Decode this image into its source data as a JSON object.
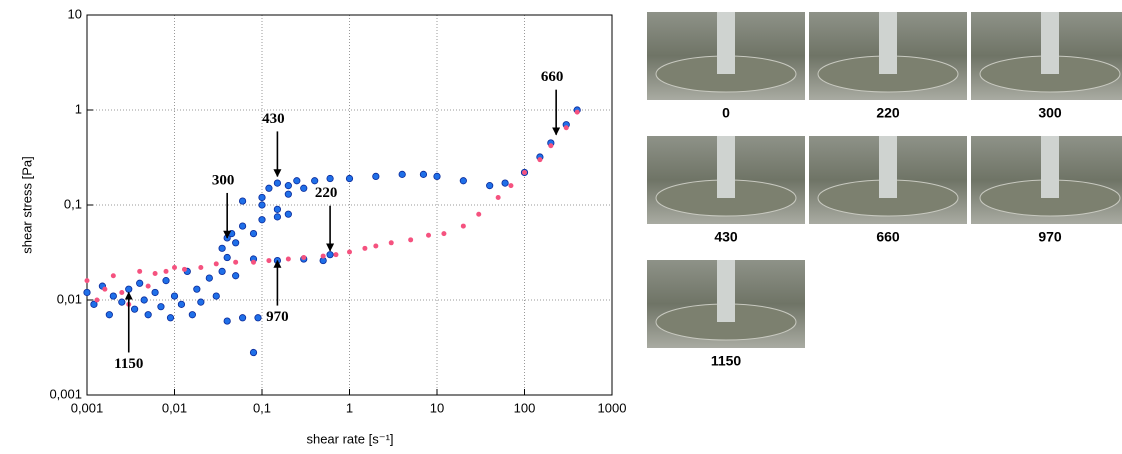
{
  "chart_data": {
    "type": "scatter",
    "xlabel": "shear rate [s⁻¹]",
    "ylabel": "shear stress [Pa]",
    "xscale": "log",
    "yscale": "log",
    "grid": true,
    "xlim": [
      0.001,
      1000
    ],
    "ylim": [
      0.001,
      10
    ],
    "xticks": [
      {
        "value": 0.001,
        "label": "0,001"
      },
      {
        "value": 0.01,
        "label": "0,01"
      },
      {
        "value": 0.1,
        "label": "0,1"
      },
      1,
      10,
      100,
      1000
    ],
    "yticks": [
      {
        "value": 0.001,
        "label": "0,001"
      },
      {
        "value": 0.01,
        "label": "0,01"
      },
      {
        "value": 0.1,
        "label": "0,1"
      },
      1,
      10
    ],
    "series": [
      {
        "color": "#1f6fe8",
        "x": [
          0.001,
          0.0012,
          0.0015,
          0.0018,
          0.002,
          0.0025,
          0.003,
          0.0035,
          0.004,
          0.0045,
          0.005,
          0.006,
          0.007,
          0.008,
          0.009,
          0.01,
          0.012,
          0.014,
          0.016,
          0.018,
          0.02,
          0.025,
          0.03,
          0.035,
          0.04,
          0.05,
          0.06,
          0.08,
          0.09,
          0.035,
          0.04,
          0.045,
          0.05,
          0.06,
          0.08,
          0.1,
          0.15,
          0.2,
          0.15,
          0.1,
          0.06,
          0.1,
          0.2,
          0.3,
          0.2,
          0.12,
          0.15,
          0.25,
          0.4,
          0.6,
          1,
          2,
          4,
          7,
          10,
          20,
          40,
          60,
          100,
          150,
          200,
          300,
          400,
          0.04,
          0.08,
          0.15,
          0.3,
          0.5,
          0.6
        ],
        "values": [
          0.012,
          0.009,
          0.014,
          0.007,
          0.011,
          0.0095,
          0.013,
          0.008,
          0.015,
          0.01,
          0.007,
          0.012,
          0.0085,
          0.016,
          0.0065,
          0.011,
          0.009,
          0.02,
          0.007,
          0.013,
          0.0095,
          0.017,
          0.011,
          0.02,
          0.006,
          0.018,
          0.0065,
          0.0028,
          0.0065,
          0.035,
          0.045,
          0.05,
          0.04,
          0.06,
          0.05,
          0.07,
          0.075,
          0.08,
          0.09,
          0.1,
          0.11,
          0.12,
          0.13,
          0.15,
          0.16,
          0.15,
          0.17,
          0.18,
          0.18,
          0.19,
          0.19,
          0.2,
          0.21,
          0.21,
          0.2,
          0.18,
          0.16,
          0.17,
          0.22,
          0.32,
          0.45,
          0.7,
          1.0,
          0.028,
          0.027,
          0.026,
          0.027,
          0.026,
          0.03
        ]
      },
      {
        "color": "#f5527f",
        "x": [
          0.001,
          0.0013,
          0.0016,
          0.002,
          0.0025,
          0.003,
          0.004,
          0.005,
          0.006,
          0.008,
          0.01,
          0.013,
          0.02,
          0.03,
          0.05,
          0.08,
          0.12,
          0.2,
          0.3,
          0.5,
          0.7,
          1,
          1.5,
          2,
          3,
          5,
          8,
          12,
          20,
          30,
          50,
          70,
          100,
          150,
          200,
          300,
          400
        ],
        "values": [
          0.016,
          0.01,
          0.013,
          0.018,
          0.012,
          0.009,
          0.02,
          0.014,
          0.019,
          0.02,
          0.022,
          0.021,
          0.022,
          0.024,
          0.025,
          0.025,
          0.026,
          0.027,
          0.028,
          0.029,
          0.03,
          0.032,
          0.035,
          0.037,
          0.04,
          0.043,
          0.048,
          0.05,
          0.06,
          0.08,
          0.12,
          0.16,
          0.22,
          0.3,
          0.42,
          0.65,
          0.95
        ]
      }
    ],
    "annotations": [
      {
        "text": "660",
        "x": 230,
        "y": 0.55,
        "direction": "down"
      },
      {
        "text": "430",
        "x": 0.15,
        "y": 0.2,
        "direction": "down"
      },
      {
        "text": "300",
        "x": 0.04,
        "y": 0.045,
        "direction": "down"
      },
      {
        "text": "220",
        "x": 0.6,
        "y": 0.033,
        "direction": "down"
      },
      {
        "text": "970",
        "x": 0.15,
        "y": 0.026,
        "direction": "up"
      },
      {
        "text": "1150",
        "x": 0.003,
        "y": 0.012,
        "direction": "up"
      }
    ]
  },
  "photos": [
    "0",
    "220",
    "300",
    "430",
    "660",
    "970",
    "1150"
  ]
}
